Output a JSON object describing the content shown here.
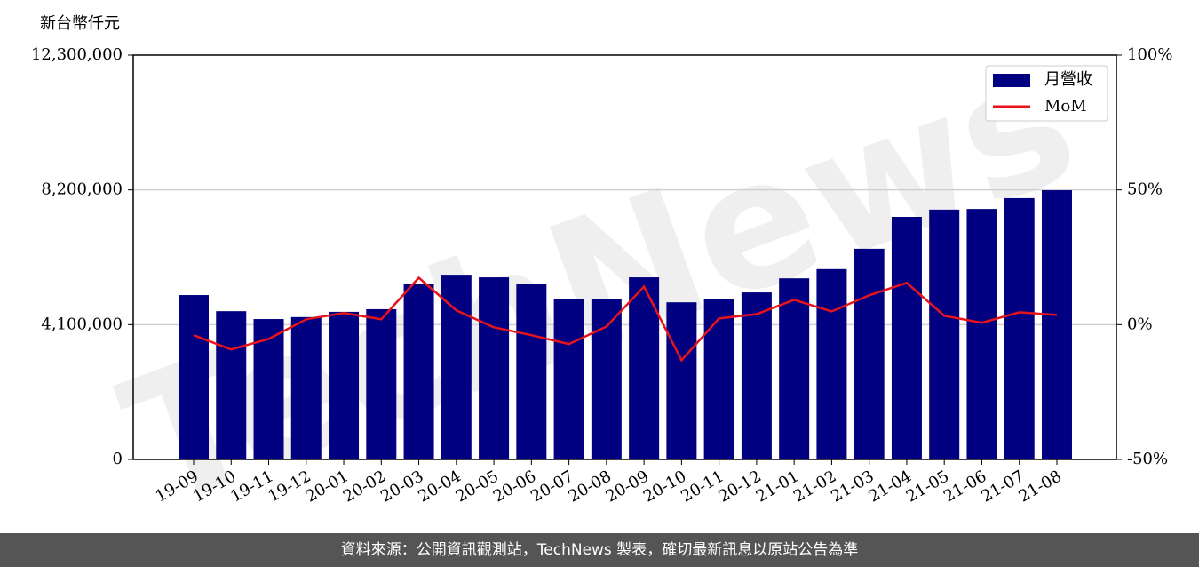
{
  "chart_data": {
    "type": "bar",
    "y_label": "新台幣仟元",
    "watermark": "TechNews",
    "categories": [
      "19-09",
      "19-10",
      "19-11",
      "19-12",
      "20-01",
      "20-02",
      "20-03",
      "20-04",
      "20-05",
      "20-06",
      "20-07",
      "20-08",
      "20-09",
      "20-10",
      "20-11",
      "20-12",
      "21-01",
      "21-02",
      "21-03",
      "21-04",
      "21-05",
      "21-06",
      "21-07",
      "21-08"
    ],
    "series": [
      {
        "name": "月營收",
        "type": "bar",
        "color": "#000080",
        "values": [
          5000000,
          4510000,
          4270000,
          4330000,
          4490000,
          4570000,
          5350000,
          5620000,
          5540000,
          5330000,
          4890000,
          4870000,
          5540000,
          4780000,
          4890000,
          5080000,
          5510000,
          5790000,
          6410000,
          7380000,
          7600000,
          7620000,
          7950000,
          8190000
        ]
      },
      {
        "name": "MoM",
        "type": "line",
        "color": "#e8141c",
        "axis": "y2",
        "values": [
          -3.9,
          -9.2,
          -5.3,
          2.0,
          4.3,
          2.0,
          17.4,
          5.3,
          -1.0,
          -3.9,
          -7.2,
          -0.7,
          14.1,
          -13.2,
          2.3,
          3.9,
          9.2,
          4.9,
          10.9,
          15.5,
          3.3,
          0.7,
          4.6,
          3.6
        ]
      }
    ],
    "ylim": [
      0,
      12300000
    ],
    "yticks": [
      0,
      {
        "value": 4100000,
        "label": "4,100,000"
      },
      {
        "value": 8200000,
        "label": "8,200,000"
      },
      {
        "value": 12300000,
        "label": "12,300,000"
      }
    ],
    "y2lim": [
      -50,
      100
    ],
    "y2ticks": [
      {
        "value": -50,
        "label": "-50%"
      },
      {
        "value": 0,
        "label": "0%"
      },
      {
        "value": 50,
        "label": "50%"
      },
      {
        "value": 100,
        "label": "100%"
      }
    ],
    "grid": true,
    "legend": "upper right",
    "footer": "資料來源：公開資訊觀測站，TechNews 製表，確切最新訊息以原站公告為準"
  }
}
